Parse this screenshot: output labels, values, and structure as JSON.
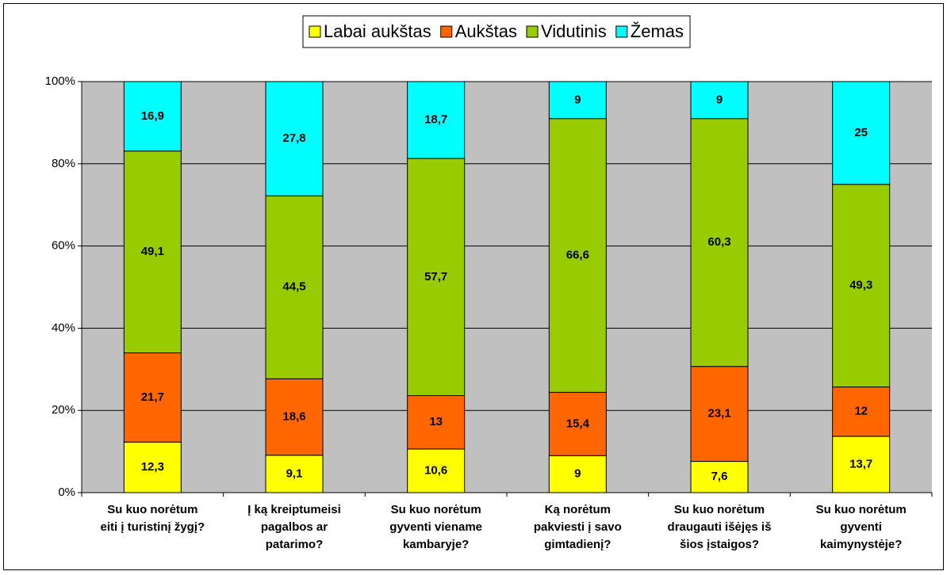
{
  "chart_data": {
    "type": "stacked_bar_100",
    "categories": [
      [
        "Su kuo norėtum",
        "eiti į turistinį žygį?"
      ],
      [
        "Į ką kreiptumeisi",
        "pagalbos ar",
        "patarimo?"
      ],
      [
        "Su kuo norėtum",
        "gyventi viename",
        "kambaryje?"
      ],
      [
        "Ką norėtum",
        "pakviesti į savo",
        "gimtadienį?"
      ],
      [
        "Su kuo norėtum",
        "draugauti išėjęs iš",
        "šios įstaigos?"
      ],
      [
        "Su kuo norėtum",
        "gyventi",
        "kaimynystėje?"
      ]
    ],
    "series": [
      {
        "name": "Labai aukštas",
        "color": "#ffff00",
        "values": [
          12.3,
          9.1,
          10.6,
          9,
          7.6,
          13.7
        ],
        "value_labels": [
          "12,3",
          "9,1",
          "10,6",
          "9",
          "7,6",
          "13,7"
        ]
      },
      {
        "name": "Aukštas",
        "color": "#ff6600",
        "values": [
          21.7,
          18.6,
          13,
          15.4,
          23.1,
          12
        ],
        "value_labels": [
          "21,7",
          "18,6",
          "13",
          "15,4",
          "23,1",
          "12"
        ]
      },
      {
        "name": "Vidutinis",
        "color": "#99cc00",
        "values": [
          49.1,
          44.5,
          57.7,
          66.6,
          60.3,
          49.3
        ],
        "value_labels": [
          "49,1",
          "44,5",
          "57,7",
          "66,6",
          "60,3",
          "49,3"
        ]
      },
      {
        "name": "Žemas",
        "color": "#00ffff",
        "values": [
          16.9,
          27.8,
          18.7,
          9,
          9,
          25
        ],
        "value_labels": [
          "16,9",
          "27,8",
          "18,7",
          "9",
          "9",
          "25"
        ]
      }
    ],
    "ylim": [
      0,
      100
    ],
    "yticks": [
      {
        "value": 0,
        "label": "0%"
      },
      {
        "value": 20,
        "label": "20%"
      },
      {
        "value": 40,
        "label": "40%"
      },
      {
        "value": 60,
        "label": "60%"
      },
      {
        "value": 80,
        "label": "80%"
      },
      {
        "value": 100,
        "label": "100%"
      }
    ],
    "grid": true,
    "legend": "top"
  }
}
